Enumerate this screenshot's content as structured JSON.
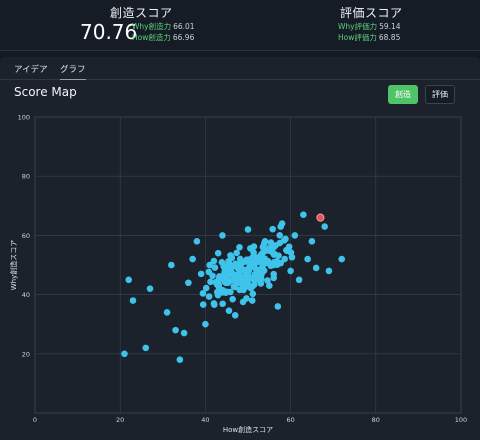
{
  "header": {
    "creation": {
      "title": "創造スコア",
      "score": "70.76",
      "lines": [
        {
          "label": "Why創造力",
          "value": "66.01"
        },
        {
          "label": "How創造力",
          "value": "66.96"
        }
      ]
    },
    "evaluation": {
      "title": "評価スコア",
      "lines": [
        {
          "label": "Why評価力",
          "value": "59.14"
        },
        {
          "label": "How評価力",
          "value": "68.85"
        }
      ]
    }
  },
  "tabs": [
    {
      "label": "アイデア",
      "active": false
    },
    {
      "label": "グラフ",
      "active": true
    }
  ],
  "chart_title": "Score Map",
  "mode_buttons": {
    "creation": "創造",
    "evaluation": "評価"
  },
  "colors": {
    "point": "#3ec3ea",
    "highlight": "#e05555",
    "accent": "#4ec467"
  },
  "chart_data": {
    "type": "scatter",
    "xlabel": "How創造スコア",
    "ylabel": "Why創造スコア",
    "xlim": [
      0,
      100
    ],
    "ylim": [
      0,
      100
    ],
    "xticks": [
      0,
      20,
      40,
      60,
      80,
      100
    ],
    "yticks": [
      20,
      40,
      60,
      80,
      100
    ],
    "grid": true,
    "highlight_point": {
      "x": 67,
      "y": 66
    },
    "points": [
      {
        "x": 21,
        "y": 20
      },
      {
        "x": 22,
        "y": 45
      },
      {
        "x": 23,
        "y": 38
      },
      {
        "x": 26,
        "y": 22
      },
      {
        "x": 27,
        "y": 42
      },
      {
        "x": 31,
        "y": 34
      },
      {
        "x": 32,
        "y": 50
      },
      {
        "x": 33,
        "y": 28
      },
      {
        "x": 34,
        "y": 18
      },
      {
        "x": 35,
        "y": 27
      },
      {
        "x": 36,
        "y": 44
      },
      {
        "x": 37,
        "y": 52
      },
      {
        "x": 38,
        "y": 58
      },
      {
        "x": 39,
        "y": 47
      },
      {
        "x": 40,
        "y": 30
      },
      {
        "x": 41,
        "y": 50
      },
      {
        "x": 42,
        "y": 37
      },
      {
        "x": 43,
        "y": 54
      },
      {
        "x": 44,
        "y": 60
      },
      {
        "x": 45,
        "y": 41
      },
      {
        "x": 46,
        "y": 48
      },
      {
        "x": 47,
        "y": 33
      },
      {
        "x": 48,
        "y": 56
      },
      {
        "x": 49,
        "y": 44
      },
      {
        "x": 50,
        "y": 62
      },
      {
        "x": 51,
        "y": 38
      },
      {
        "x": 52,
        "y": 52
      },
      {
        "x": 53,
        "y": 47
      },
      {
        "x": 54,
        "y": 58
      },
      {
        "x": 55,
        "y": 43
      },
      {
        "x": 56,
        "y": 50
      },
      {
        "x": 57,
        "y": 36
      },
      {
        "x": 58,
        "y": 64
      },
      {
        "x": 59,
        "y": 55
      },
      {
        "x": 60,
        "y": 48
      },
      {
        "x": 61,
        "y": 60
      },
      {
        "x": 62,
        "y": 45
      },
      {
        "x": 63,
        "y": 67
      },
      {
        "x": 64,
        "y": 52
      },
      {
        "x": 65,
        "y": 58
      },
      {
        "x": 66,
        "y": 49
      },
      {
        "x": 68,
        "y": 63
      },
      {
        "x": 72,
        "y": 52
      },
      {
        "x": 69,
        "y": 48
      }
    ]
  }
}
